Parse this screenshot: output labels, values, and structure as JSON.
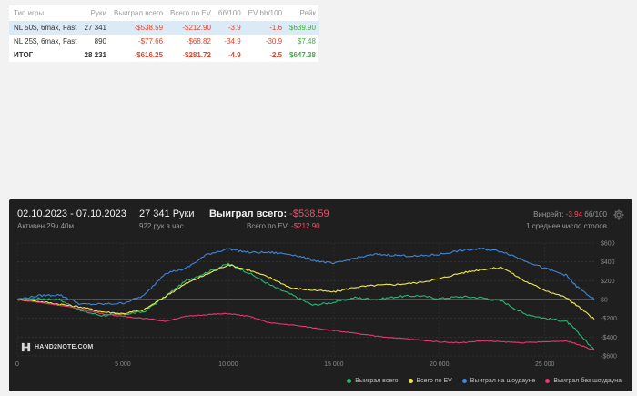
{
  "summary": {
    "headers": [
      "Тип игры",
      "Руки",
      "Выиграл всего",
      "Всего по EV",
      "бб/100",
      "EV bb/100",
      "Рейк"
    ],
    "rows": [
      {
        "cells": [
          "NL 50$, 6max, Fast",
          "27 341",
          "-$538.59",
          "-$212.90",
          "-3.9",
          "-1.6",
          "$639.90"
        ],
        "selected": true
      },
      {
        "cells": [
          "NL 25$, 6max, Fast",
          "890",
          "-$77.66",
          "-$68.82",
          "-34.9",
          "-30.9",
          "$7.48"
        ],
        "selected": false
      },
      {
        "cells": [
          "ИТОГ",
          "28 231",
          "-$616.25",
          "-$281.72",
          "-4.9",
          "-2.5",
          "$647.38"
        ],
        "selected": false,
        "total": true
      }
    ]
  },
  "panel": {
    "period": "02.10.2023 - 07.10.2023",
    "active": "Активен 29ч 40м",
    "hands": "27 341 Руки",
    "per_hour": "922 рук в час",
    "won_label": "Выиграл всего:",
    "won_value": "-$538.59",
    "ev_label": "Всего по EV:",
    "ev_value": "-$212.90",
    "winrate_label": "Винрейт:",
    "winrate_value": "-3.94",
    "winrate_unit": "бб/100",
    "tables": "1 среднее число столов",
    "logo": "HAND2NOTE.COM",
    "gear_icon": "gear-icon",
    "legend": [
      "Выиграл всего",
      "Всего по EV",
      "Выиграл на шоудауне",
      "Выиграл без шоудауна"
    ]
  },
  "colors": {
    "won": "#2bb673",
    "ev": "#f2e94e",
    "showdown": "#3f86d8",
    "nonshowdown": "#e6396e",
    "neg": "#e0452b",
    "pos": "#3fae3f",
    "highlight": "#dbeaf7"
  },
  "chart_data": {
    "type": "line",
    "x_ticks": [
      "0",
      "5 000",
      "10 000",
      "15 000",
      "20 000",
      "25 000"
    ],
    "y_ticks": [
      "$600",
      "$400",
      "$200",
      "$0",
      "-$200",
      "-$400",
      "-$600"
    ],
    "xlim": [
      0,
      27341
    ],
    "ylim": [
      -600,
      600
    ],
    "grid": true,
    "legend_position": "bottom-right",
    "series": [
      {
        "name": "Выиграл всего",
        "color": "#2bb673",
        "x": [
          0,
          1000,
          2000,
          3000,
          4000,
          5000,
          6000,
          7000,
          8000,
          9000,
          10000,
          11000,
          12000,
          13000,
          14000,
          15000,
          16000,
          17000,
          18000,
          19000,
          20000,
          21000,
          22000,
          23000,
          24000,
          25000,
          26000,
          26500,
          27341
        ],
        "y": [
          0,
          10,
          0,
          -120,
          -170,
          -160,
          -130,
          30,
          200,
          290,
          380,
          280,
          150,
          50,
          -60,
          -30,
          20,
          0,
          30,
          40,
          10,
          30,
          20,
          -20,
          -150,
          -200,
          -230,
          -330,
          -540
        ]
      },
      {
        "name": "Всего по EV",
        "color": "#f2e94e",
        "x": [
          0,
          1000,
          2000,
          3000,
          4000,
          5000,
          6000,
          7000,
          8000,
          9000,
          10000,
          11000,
          12000,
          13000,
          14000,
          15000,
          16000,
          17000,
          18000,
          19000,
          20000,
          21000,
          22000,
          23000,
          24000,
          25000,
          26000,
          26500,
          27341
        ],
        "y": [
          0,
          -20,
          -50,
          -80,
          -130,
          -150,
          -110,
          30,
          170,
          270,
          370,
          310,
          230,
          120,
          100,
          80,
          130,
          150,
          160,
          180,
          220,
          280,
          320,
          340,
          200,
          100,
          20,
          -60,
          -210
        ]
      },
      {
        "name": "Выиграл на шоудауне",
        "color": "#3f86d8",
        "x": [
          0,
          1000,
          2000,
          3000,
          4000,
          5000,
          6000,
          7000,
          8000,
          9000,
          10000,
          11000,
          12000,
          13000,
          14000,
          15000,
          16000,
          17000,
          18000,
          19000,
          20000,
          21000,
          22000,
          23000,
          24000,
          25000,
          26000,
          26500,
          27341
        ],
        "y": [
          0,
          40,
          50,
          -50,
          -50,
          -40,
          40,
          280,
          330,
          480,
          540,
          500,
          500,
          480,
          420,
          380,
          440,
          480,
          470,
          460,
          480,
          520,
          540,
          510,
          420,
          330,
          260,
          140,
          0
        ]
      },
      {
        "name": "Выиграл без шоудауна",
        "color": "#e6396e",
        "x": [
          0,
          1000,
          2000,
          3000,
          4000,
          5000,
          6000,
          7000,
          8000,
          9000,
          10000,
          11000,
          12000,
          13000,
          14000,
          15000,
          16000,
          17000,
          18000,
          19000,
          20000,
          21000,
          22000,
          23000,
          24000,
          25000,
          26000,
          26500,
          27341
        ],
        "y": [
          0,
          -30,
          -60,
          -100,
          -150,
          -180,
          -200,
          -230,
          -180,
          -160,
          -150,
          -180,
          -250,
          -270,
          -300,
          -330,
          -360,
          -390,
          -410,
          -430,
          -450,
          -460,
          -440,
          -450,
          -460,
          -450,
          -440,
          -470,
          -540
        ]
      }
    ]
  }
}
